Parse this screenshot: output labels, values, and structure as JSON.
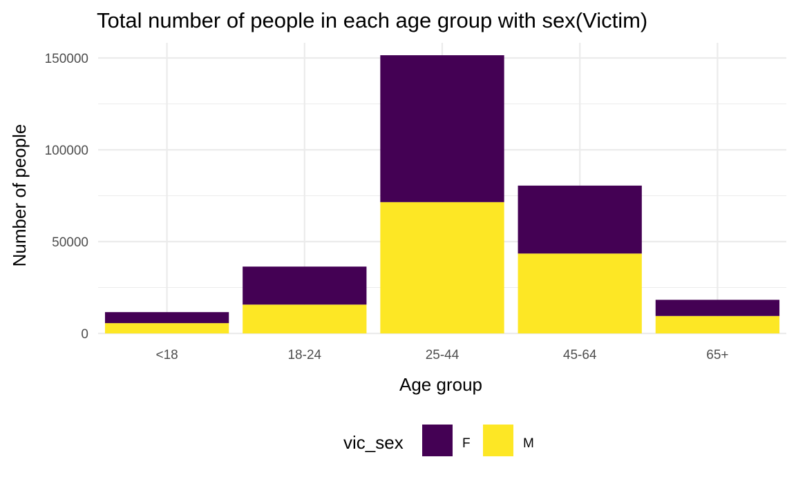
{
  "chart_data": {
    "type": "bar",
    "stacked": true,
    "title": "Total number of people in each age group with sex(Victim)",
    "xlabel": "Age group",
    "ylabel": "Number of people",
    "categories": [
      "<18",
      "18-24",
      "25-44",
      "45-64",
      "65+"
    ],
    "series": [
      {
        "name": "F",
        "color": "#440154",
        "values": [
          6000,
          20700,
          80000,
          37000,
          8800
        ]
      },
      {
        "name": "M",
        "color": "#FDE725",
        "values": [
          5600,
          15700,
          71500,
          43500,
          9500
        ]
      }
    ],
    "stack_order": [
      "M",
      "F"
    ],
    "ylim": [
      0,
      150000
    ],
    "yticks": [
      0,
      50000,
      100000,
      150000
    ],
    "ytick_labels": [
      "0",
      "50000",
      "100000",
      "150000"
    ],
    "grid": true,
    "legend_title": "vic_sex",
    "legend_position": "bottom"
  }
}
